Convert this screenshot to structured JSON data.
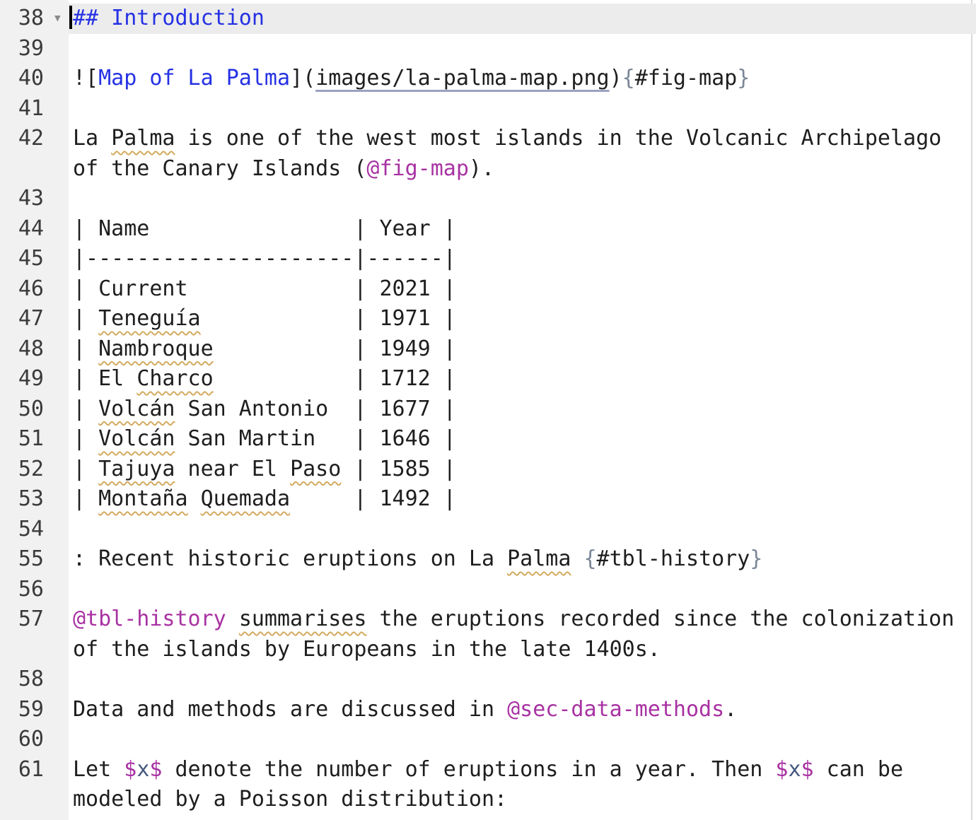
{
  "colors": {
    "background": "#ffffff",
    "gutter_bg": "#f1f1f1",
    "gutter_text": "#3b3b3b",
    "active_line_bg": "#ececec",
    "text": "#1e1e1e",
    "heading_blue": "#2531e3",
    "crossref_magenta": "#a832a2",
    "brace_gray": "#7b8798",
    "math_var_blue": "#45597f",
    "link_underline": "#9aa2c0",
    "spellcheck_squiggle": "#d4ab60",
    "cursor": "#000000",
    "fold_arrow": "#8a8a8a",
    "scrollbar_border": "#d9d9d9"
  },
  "editor": {
    "fold_icon": "▾",
    "rows": [
      {
        "num": "38",
        "fold": true,
        "cursor": true,
        "highlight": true,
        "segments": [
          {
            "text": "## Introduction",
            "style": "blue"
          }
        ]
      },
      {
        "num": "39",
        "segments": []
      },
      {
        "num": "40",
        "segments": [
          {
            "text": "![",
            "style": "plain"
          },
          {
            "text": "Map of La Palma",
            "style": "blue"
          },
          {
            "text": "](",
            "style": "plain"
          },
          {
            "text": "images/la-palma-map.png",
            "style": "link"
          },
          {
            "text": ")",
            "style": "plain"
          },
          {
            "text": "{",
            "style": "brace"
          },
          {
            "text": "#fig-map",
            "style": "plain"
          },
          {
            "text": "}",
            "style": "brace"
          }
        ]
      },
      {
        "num": "41",
        "segments": []
      },
      {
        "num": "42",
        "segments": [
          {
            "text": "La ",
            "style": "plain"
          },
          {
            "text": "Palma",
            "style": "sq"
          },
          {
            "text": " is one of the west most islands in the Volcanic Archipelago",
            "style": "plain"
          }
        ]
      },
      {
        "num": "",
        "segments": [
          {
            "text": "of the Canary Islands (",
            "style": "plain"
          },
          {
            "text": "@fig-map",
            "style": "magenta"
          },
          {
            "text": ").",
            "style": "plain"
          }
        ]
      },
      {
        "num": "43",
        "segments": []
      },
      {
        "num": "44",
        "segments": [
          {
            "text": "| Name                | Year |",
            "style": "plain"
          }
        ]
      },
      {
        "num": "45",
        "segments": [
          {
            "text": "|---------------------|------|",
            "style": "plain"
          }
        ]
      },
      {
        "num": "46",
        "segments": [
          {
            "text": "| Current             | 2021 |",
            "style": "plain"
          }
        ]
      },
      {
        "num": "47",
        "segments": [
          {
            "text": "| ",
            "style": "plain"
          },
          {
            "text": "Teneguía",
            "style": "sq"
          },
          {
            "text": "            | 1971 |",
            "style": "plain"
          }
        ]
      },
      {
        "num": "48",
        "segments": [
          {
            "text": "| ",
            "style": "plain"
          },
          {
            "text": "Nambroque",
            "style": "sq"
          },
          {
            "text": "           | 1949 |",
            "style": "plain"
          }
        ]
      },
      {
        "num": "49",
        "segments": [
          {
            "text": "| El ",
            "style": "plain"
          },
          {
            "text": "Charco",
            "style": "sq"
          },
          {
            "text": "           | 1712 |",
            "style": "plain"
          }
        ]
      },
      {
        "num": "50",
        "segments": [
          {
            "text": "| ",
            "style": "plain"
          },
          {
            "text": "Volcán",
            "style": "sq"
          },
          {
            "text": " San Antonio  | 1677 |",
            "style": "plain"
          }
        ]
      },
      {
        "num": "51",
        "segments": [
          {
            "text": "| ",
            "style": "plain"
          },
          {
            "text": "Volcán",
            "style": "sq"
          },
          {
            "text": " San Martin   | 1646 |",
            "style": "plain"
          }
        ]
      },
      {
        "num": "52",
        "segments": [
          {
            "text": "| ",
            "style": "plain"
          },
          {
            "text": "Tajuya",
            "style": "sq"
          },
          {
            "text": " near El ",
            "style": "plain"
          },
          {
            "text": "Paso",
            "style": "sq"
          },
          {
            "text": " | 1585 |",
            "style": "plain"
          }
        ]
      },
      {
        "num": "53",
        "segments": [
          {
            "text": "| ",
            "style": "plain"
          },
          {
            "text": "Montaña",
            "style": "sq"
          },
          {
            "text": " ",
            "style": "plain"
          },
          {
            "text": "Quemada",
            "style": "sq"
          },
          {
            "text": "     | 1492 |",
            "style": "plain"
          }
        ]
      },
      {
        "num": "54",
        "segments": []
      },
      {
        "num": "55",
        "segments": [
          {
            "text": ": Recent historic eruptions on La ",
            "style": "plain"
          },
          {
            "text": "Palma",
            "style": "sq"
          },
          {
            "text": " ",
            "style": "plain"
          },
          {
            "text": "{",
            "style": "brace"
          },
          {
            "text": "#tbl-history",
            "style": "plain"
          },
          {
            "text": "}",
            "style": "brace"
          }
        ]
      },
      {
        "num": "56",
        "segments": []
      },
      {
        "num": "57",
        "segments": [
          {
            "text": "@tbl-history",
            "style": "magenta"
          },
          {
            "text": " ",
            "style": "plain"
          },
          {
            "text": "summarises",
            "style": "sq"
          },
          {
            "text": " the eruptions recorded since the colonization",
            "style": "plain"
          }
        ]
      },
      {
        "num": "",
        "segments": [
          {
            "text": "of the islands by Europeans in the late 1400s.",
            "style": "plain"
          }
        ]
      },
      {
        "num": "58",
        "segments": []
      },
      {
        "num": "59",
        "segments": [
          {
            "text": "Data and methods are discussed in ",
            "style": "plain"
          },
          {
            "text": "@sec-data-methods",
            "style": "magenta"
          },
          {
            "text": ".",
            "style": "plain"
          }
        ]
      },
      {
        "num": "60",
        "segments": []
      },
      {
        "num": "61",
        "segments": [
          {
            "text": "Let ",
            "style": "plain"
          },
          {
            "text": "$",
            "style": "magenta"
          },
          {
            "text": "x",
            "style": "xvar"
          },
          {
            "text": "$",
            "style": "magenta"
          },
          {
            "text": " denote the number of eruptions in a year. Then ",
            "style": "plain"
          },
          {
            "text": "$",
            "style": "magenta"
          },
          {
            "text": "x",
            "style": "xvar"
          },
          {
            "text": "$",
            "style": "magenta"
          },
          {
            "text": " can be",
            "style": "plain"
          }
        ]
      },
      {
        "num": "",
        "segments": [
          {
            "text": "modeled by a Poisson distribution:",
            "style": "plain"
          }
        ]
      }
    ]
  }
}
